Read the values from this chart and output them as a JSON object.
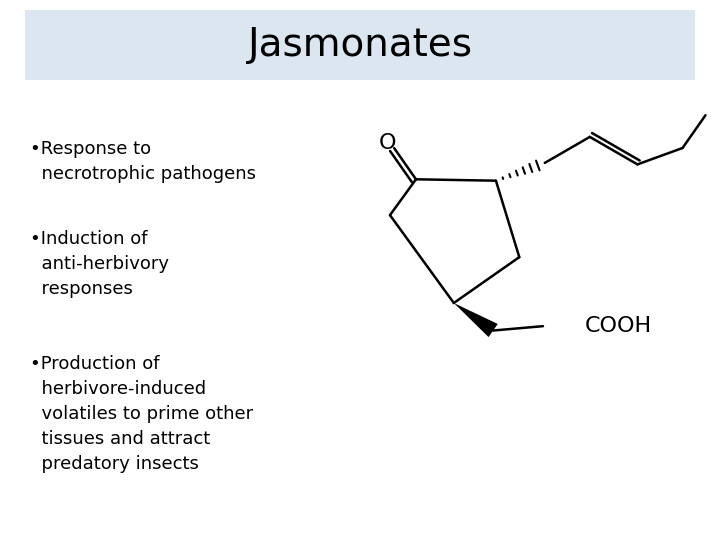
{
  "title": "Jasmonates",
  "title_fontsize": 28,
  "title_bg_color": "#dce6f1",
  "bg_color": "#ffffff",
  "bullet_points": [
    "•Response to\n  necrotrophic pathogens",
    "•Induction of\n  anti-herbivory\n  responses",
    "•Production of\n  herbivore-induced\n  volatiles to prime other\n  tissues and attract\n  predatory insects"
  ],
  "bullet_fontsize": 13,
  "text_color": "#000000"
}
